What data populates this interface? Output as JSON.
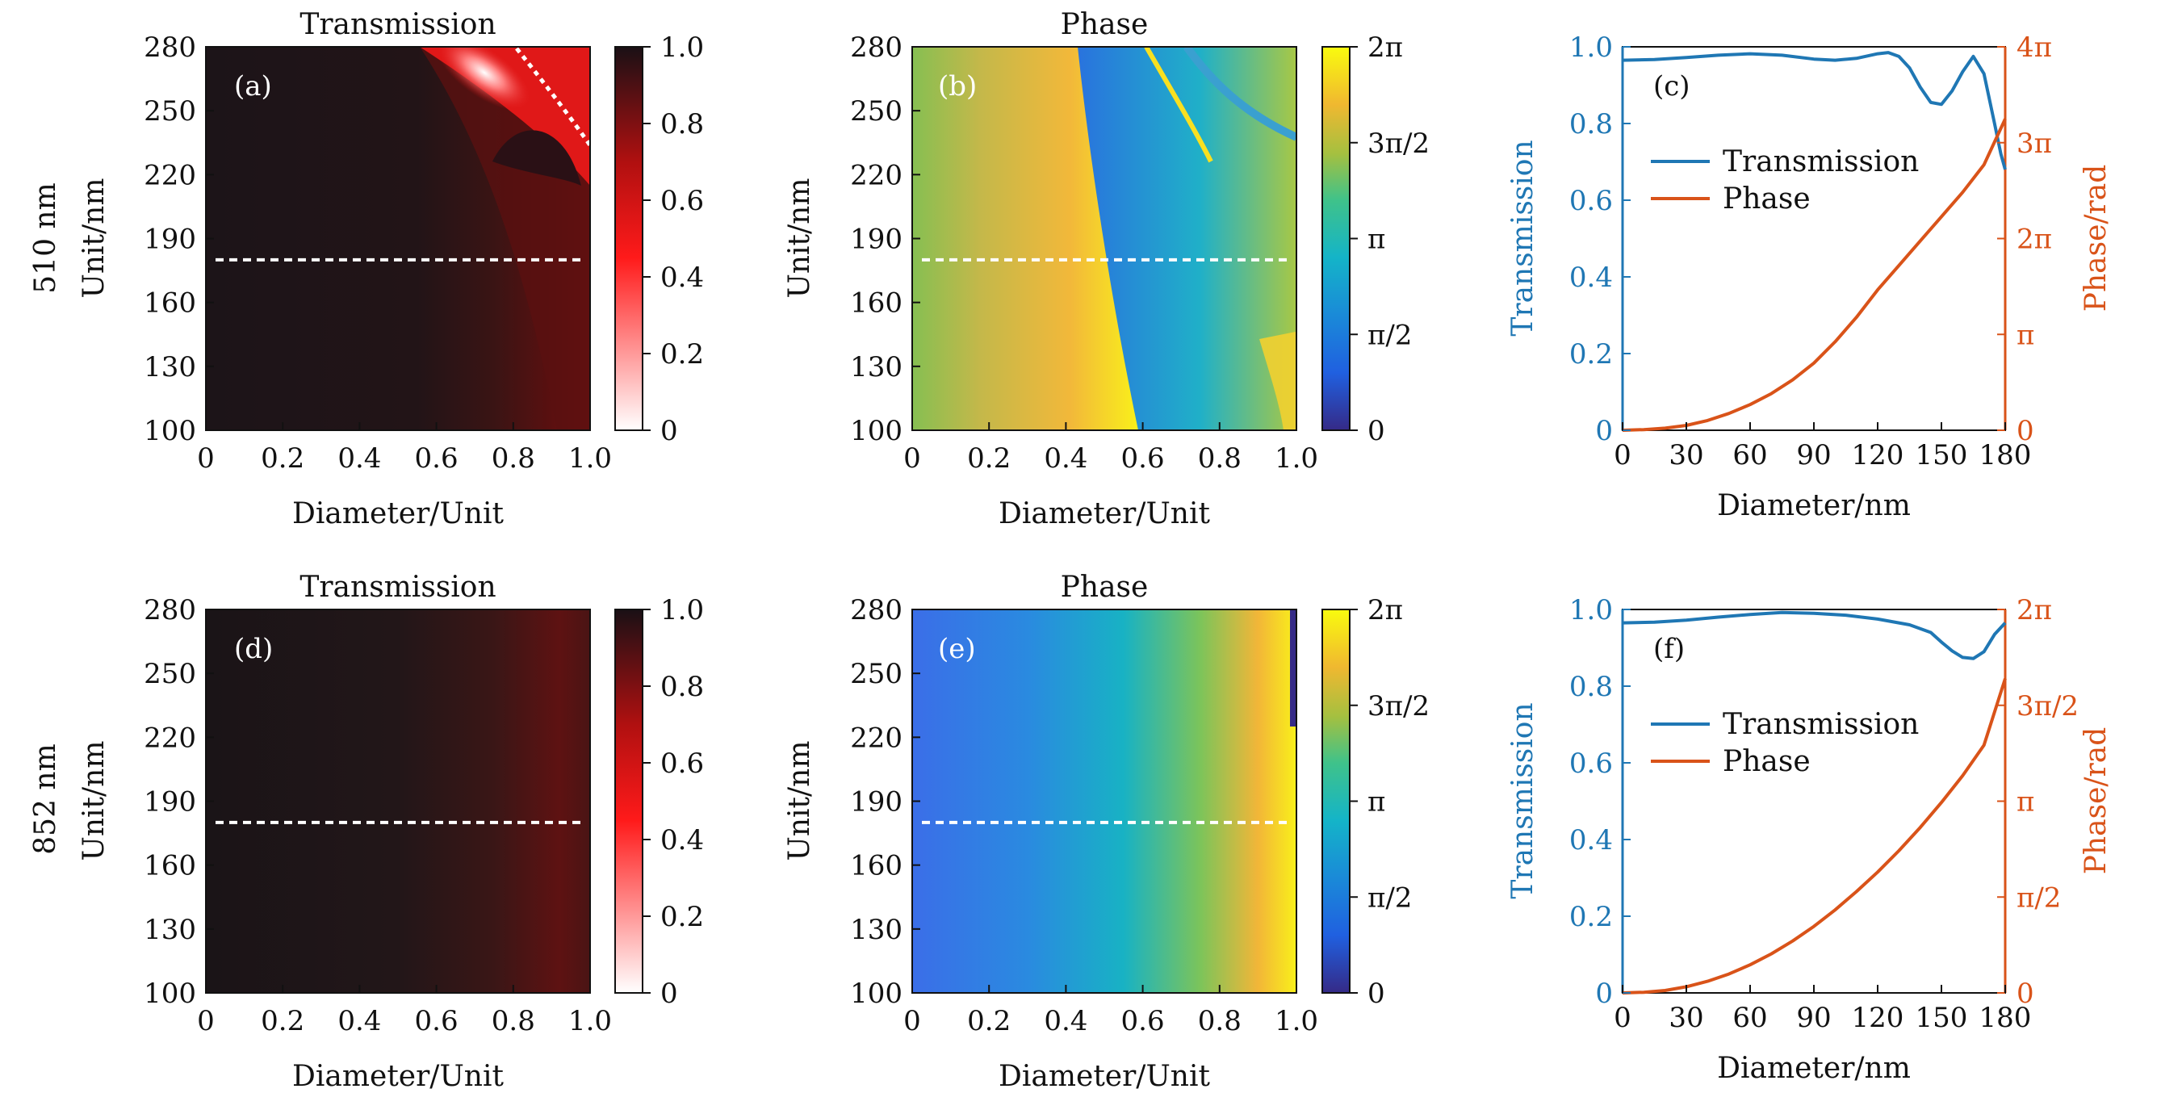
{
  "figure": {
    "row_labels": [
      "510 nm",
      "852 nm"
    ]
  },
  "colors": {
    "transmission_line": "#1f77b4",
    "phase_line": "#d95319",
    "dashed": "#ffffff"
  },
  "chart_data": [
    {
      "id": "a",
      "type": "heatmap",
      "panel_label": "(a)",
      "title": "Transmission",
      "xlabel": "Diameter/Unit",
      "ylabel": "Unit/nm",
      "xlim": [
        0,
        1.0
      ],
      "ylim": [
        100,
        280
      ],
      "xticks": [
        "0",
        "0.2",
        "0.4",
        "0.6",
        "0.8",
        "1.0"
      ],
      "yticks": [
        "100",
        "130",
        "160",
        "190",
        "220",
        "250",
        "280"
      ],
      "colorbar": {
        "range": [
          0,
          1.0
        ],
        "ticks": [
          "0",
          "0.2",
          "0.4",
          "0.6",
          "0.8",
          "1.0"
        ],
        "colormap": "white-red-black"
      },
      "dashed_line_unit": 180
    },
    {
      "id": "b",
      "type": "heatmap",
      "panel_label": "(b)",
      "title": "Phase",
      "xlabel": "Diameter/Unit",
      "ylabel": "Unit/nm",
      "xlim": [
        0,
        1.0
      ],
      "ylim": [
        100,
        280
      ],
      "xticks": [
        "0",
        "0.2",
        "0.4",
        "0.6",
        "0.8",
        "1.0"
      ],
      "yticks": [
        "100",
        "130",
        "160",
        "190",
        "220",
        "250",
        "280"
      ],
      "colorbar": {
        "range": [
          0,
          6.2832
        ],
        "ticks": [
          "0",
          "π/2",
          "π",
          "3π/2",
          "2π"
        ],
        "colormap": "parula"
      },
      "dashed_line_unit": 180
    },
    {
      "id": "c",
      "type": "line",
      "panel_label": "(c)",
      "xlabel": "Diameter/nm",
      "ylabel_left": "Transmission",
      "ylabel_right": "Phase/rad",
      "xlim": [
        0,
        180
      ],
      "ylim_left": [
        0,
        1.0
      ],
      "ylim_right": [
        0,
        12.566
      ],
      "xticks": [
        "0",
        "30",
        "60",
        "90",
        "120",
        "150",
        "180"
      ],
      "yticks_left": [
        "0",
        "0.2",
        "0.4",
        "0.6",
        "0.8",
        "1.0"
      ],
      "yticks_right": [
        "0",
        "π",
        "2π",
        "3π",
        "4π"
      ],
      "legend": [
        "Transmission",
        "Phase"
      ],
      "series": [
        {
          "name": "Transmission",
          "axis": "left",
          "x": [
            0,
            15,
            30,
            45,
            60,
            75,
            90,
            100,
            110,
            120,
            125,
            130,
            135,
            140,
            145,
            150,
            155,
            160,
            165,
            170,
            175,
            178,
            180
          ],
          "y": [
            0.965,
            0.967,
            0.972,
            0.978,
            0.982,
            0.978,
            0.968,
            0.965,
            0.97,
            0.982,
            0.985,
            0.975,
            0.945,
            0.895,
            0.855,
            0.85,
            0.885,
            0.935,
            0.975,
            0.93,
            0.8,
            0.72,
            0.68
          ]
        },
        {
          "name": "Phase",
          "axis": "right",
          "x": [
            0,
            10,
            20,
            30,
            40,
            50,
            60,
            70,
            80,
            90,
            100,
            110,
            120,
            130,
            140,
            150,
            160,
            170,
            180
          ],
          "y": [
            0,
            0.02,
            0.07,
            0.16,
            0.32,
            0.55,
            0.84,
            1.2,
            1.65,
            2.2,
            2.9,
            3.7,
            4.6,
            5.4,
            6.2,
            7.0,
            7.8,
            8.7,
            10.2
          ]
        }
      ]
    },
    {
      "id": "d",
      "type": "heatmap",
      "panel_label": "(d)",
      "title": "Transmission",
      "xlabel": "Diameter/Unit",
      "ylabel": "Unit/nm",
      "xlim": [
        0,
        1.0
      ],
      "ylim": [
        100,
        280
      ],
      "xticks": [
        "0",
        "0.2",
        "0.4",
        "0.6",
        "0.8",
        "1.0"
      ],
      "yticks": [
        "100",
        "130",
        "160",
        "190",
        "220",
        "250",
        "280"
      ],
      "colorbar": {
        "range": [
          0,
          1.0
        ],
        "ticks": [
          "0",
          "0.2",
          "0.4",
          "0.6",
          "0.8",
          "1.0"
        ],
        "colormap": "white-red-black"
      },
      "dashed_line_unit": 180
    },
    {
      "id": "e",
      "type": "heatmap",
      "panel_label": "(e)",
      "title": "Phase",
      "xlabel": "Diameter/Unit",
      "ylabel": "Unit/nm",
      "xlim": [
        0,
        1.0
      ],
      "ylim": [
        100,
        280
      ],
      "xticks": [
        "0",
        "0.2",
        "0.4",
        "0.6",
        "0.8",
        "1.0"
      ],
      "yticks": [
        "100",
        "130",
        "160",
        "190",
        "220",
        "250",
        "280"
      ],
      "colorbar": {
        "range": [
          0,
          6.2832
        ],
        "ticks": [
          "0",
          "π/2",
          "π",
          "3π/2",
          "2π"
        ],
        "colormap": "parula"
      },
      "dashed_line_unit": 180
    },
    {
      "id": "f",
      "type": "line",
      "panel_label": "(f)",
      "xlabel": "Diameter/nm",
      "ylabel_left": "Transmission",
      "ylabel_right": "Phase/rad",
      "xlim": [
        0,
        180
      ],
      "ylim_left": [
        0,
        1.0
      ],
      "ylim_right": [
        0,
        6.2832
      ],
      "xticks": [
        "0",
        "30",
        "60",
        "90",
        "120",
        "150",
        "180"
      ],
      "yticks_left": [
        "0",
        "0.2",
        "0.4",
        "0.6",
        "0.8",
        "1.0"
      ],
      "yticks_right": [
        "0",
        "π/2",
        "π",
        "3π/2",
        "2π"
      ],
      "legend": [
        "Transmission",
        "Phase"
      ],
      "series": [
        {
          "name": "Transmission",
          "axis": "left",
          "x": [
            0,
            15,
            30,
            45,
            60,
            75,
            90,
            105,
            120,
            135,
            145,
            150,
            155,
            160,
            165,
            170,
            175,
            180
          ],
          "y": [
            0.965,
            0.967,
            0.972,
            0.98,
            0.987,
            0.992,
            0.99,
            0.985,
            0.975,
            0.96,
            0.94,
            0.915,
            0.892,
            0.875,
            0.872,
            0.89,
            0.935,
            0.965
          ]
        },
        {
          "name": "Phase",
          "axis": "right",
          "x": [
            0,
            10,
            20,
            30,
            40,
            50,
            60,
            70,
            80,
            90,
            100,
            110,
            120,
            130,
            140,
            150,
            160,
            170,
            180
          ],
          "y": [
            0,
            0.01,
            0.04,
            0.1,
            0.19,
            0.31,
            0.46,
            0.64,
            0.85,
            1.09,
            1.36,
            1.66,
            1.98,
            2.33,
            2.71,
            3.12,
            3.56,
            4.06,
            5.15
          ]
        }
      ]
    }
  ]
}
